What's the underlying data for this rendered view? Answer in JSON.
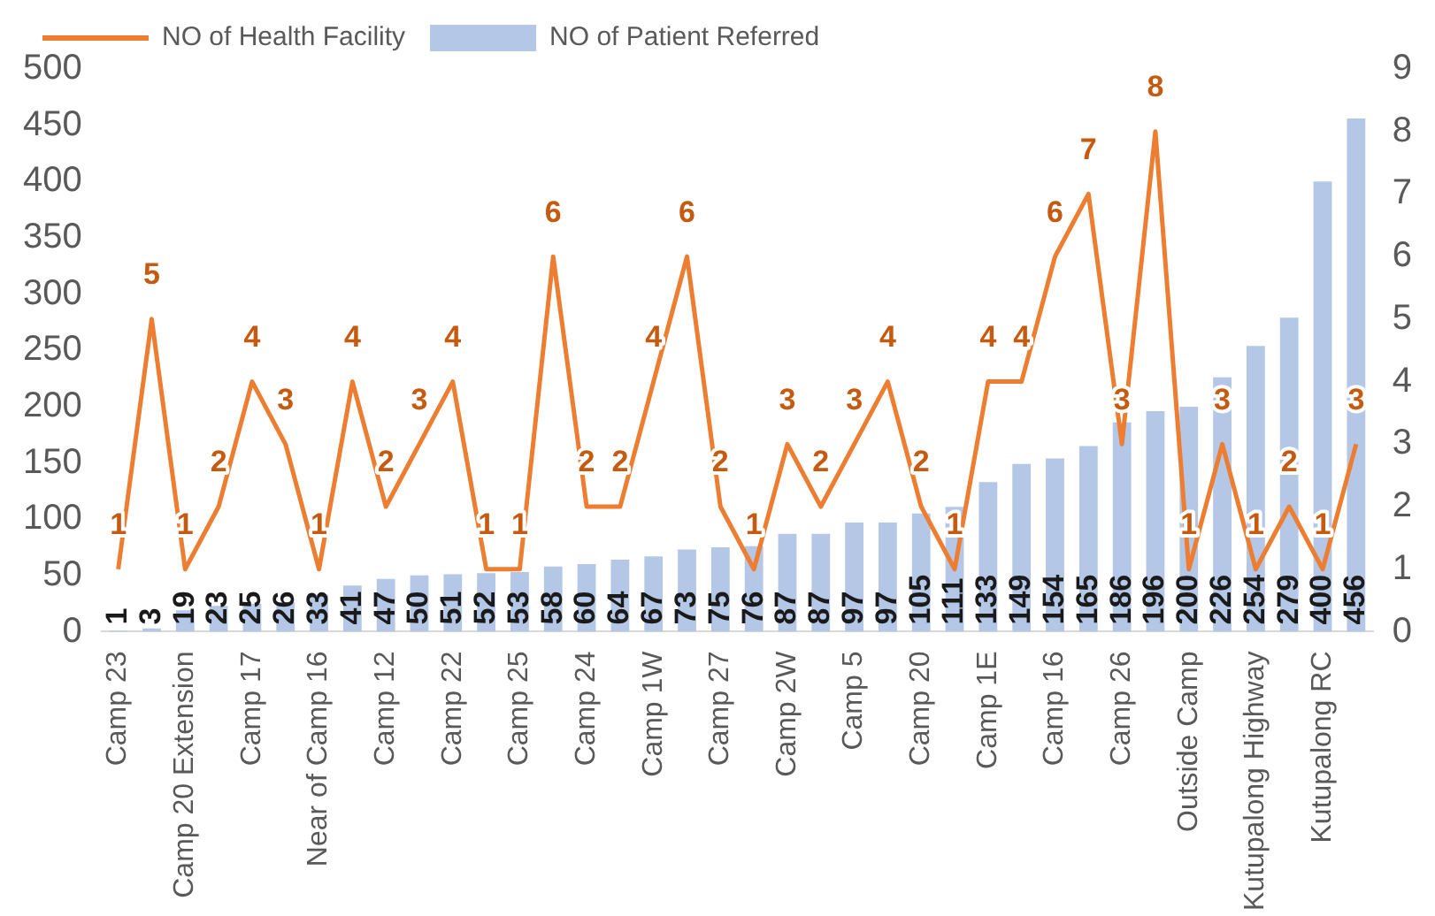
{
  "chart_data": {
    "type": "bar",
    "categories": [
      "Camp 23",
      null,
      "Camp 20 Extension",
      null,
      "Camp 17",
      null,
      "Near of Camp 16",
      null,
      "Camp 12",
      null,
      "Camp 22",
      null,
      "Camp 25",
      null,
      "Camp 24",
      null,
      "Camp 1W",
      null,
      "Camp 27",
      null,
      "Camp 2W",
      null,
      "Camp 5",
      null,
      "Camp 20",
      null,
      "Camp 1E",
      null,
      "Camp 16",
      null,
      "Camp 26",
      null,
      "Outside Camp",
      null,
      "Kutupalong Highway",
      null,
      "Kutupalong RC",
      null
    ],
    "series": [
      {
        "name": "NO of Health Facility",
        "type": "line",
        "axis": "y2",
        "color": "#ed7d31",
        "values": [
          1,
          5,
          1,
          2,
          4,
          3,
          1,
          4,
          2,
          3,
          4,
          1,
          1,
          6,
          2,
          2,
          4,
          6,
          2,
          1,
          3,
          2,
          3,
          4,
          2,
          1,
          4,
          4,
          6,
          7,
          3,
          8,
          1,
          3,
          1,
          2,
          1,
          3
        ]
      },
      {
        "name": "NO of Patient Referred",
        "color": "#b4c7e7",
        "values": [
          1,
          3,
          19,
          23,
          25,
          26,
          33,
          41,
          47,
          50,
          51,
          52,
          53,
          58,
          60,
          64,
          67,
          73,
          75,
          76,
          87,
          87,
          97,
          97,
          105,
          111,
          133,
          149,
          154,
          165,
          186,
          196,
          200,
          226,
          254,
          279,
          400,
          456
        ]
      }
    ],
    "ylim": [
      0,
      500
    ],
    "yticks": [
      0,
      50,
      100,
      150,
      200,
      250,
      300,
      350,
      400,
      450,
      500
    ],
    "y2lim": [
      0,
      9
    ],
    "y2ticks": [
      0,
      1,
      2,
      3,
      4,
      5,
      6,
      7,
      8,
      9
    ],
    "grid": false,
    "legend": "top left",
    "data_labels": true,
    "marker": "none"
  }
}
